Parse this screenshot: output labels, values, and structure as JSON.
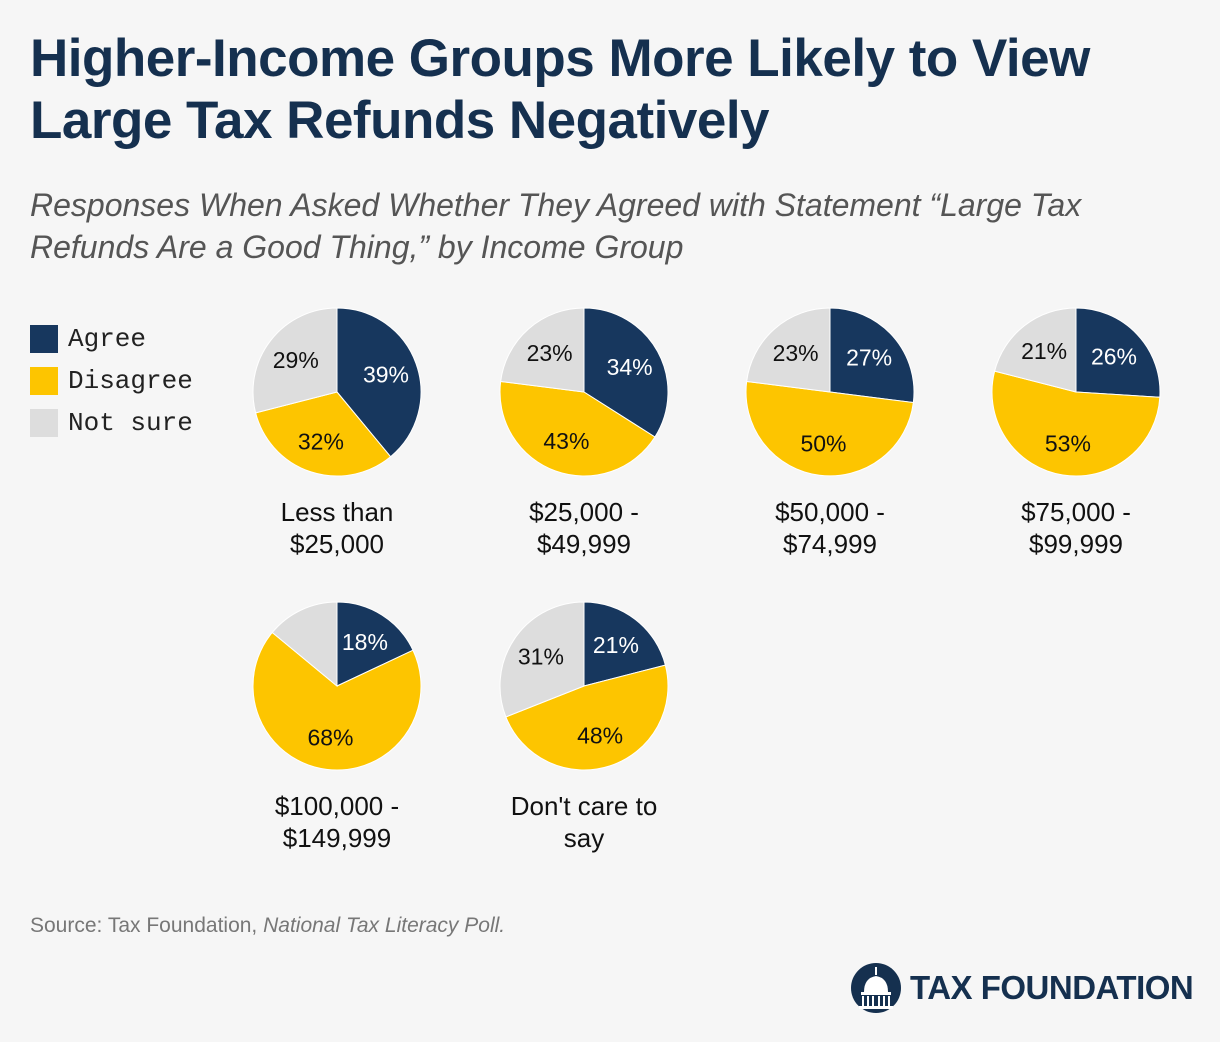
{
  "title_lines": [
    "Higher-Income Groups More Likely to View",
    "Large Tax Refunds Negatively"
  ],
  "subtitle_lines": [
    "Responses When Asked Whether They Agreed with Statement “Large Tax",
    "Refunds Are a Good Thing,” by Income Group"
  ],
  "legend": [
    {
      "label": "Agree",
      "color": "#17375e"
    },
    {
      "label": "Disagree",
      "color": "#fdc500"
    },
    {
      "label": "Not sure",
      "color": "#dddddd"
    }
  ],
  "source": {
    "prefix": "Source: Tax Foundation, ",
    "italic": "National Tax Literacy Poll."
  },
  "logo": {
    "text": "TAX FOUNDATION",
    "icon": "capitol-dome-icon"
  },
  "chart_data": {
    "type": "pie",
    "series_names": [
      "Agree",
      "Disagree",
      "Not sure"
    ],
    "colors": [
      "#17375e",
      "#fdc500",
      "#dddddd"
    ],
    "label_colors": [
      "#ffffff",
      "#111111",
      "#111111"
    ],
    "pies": [
      {
        "label_lines": [
          "Less than",
          "$25,000"
        ],
        "values": [
          39,
          32,
          29
        ]
      },
      {
        "label_lines": [
          "$25,000 -",
          "$49,999"
        ],
        "values": [
          34,
          43,
          23
        ]
      },
      {
        "label_lines": [
          "$50,000 -",
          "$74,999"
        ],
        "values": [
          27,
          50,
          23
        ]
      },
      {
        "label_lines": [
          "$75,000 -",
          "$99,999"
        ],
        "values": [
          26,
          53,
          21
        ]
      },
      {
        "label_lines": [
          "$100,000 -",
          "$149,999"
        ],
        "values": [
          18,
          68,
          14
        ]
      },
      {
        "label_lines": [
          "Don't care to",
          "say"
        ],
        "values": [
          21,
          48,
          31
        ]
      }
    ],
    "value_suffix": "%",
    "legend_position": "left",
    "hidden_value_labels": [
      [
        4,
        2
      ]
    ]
  }
}
